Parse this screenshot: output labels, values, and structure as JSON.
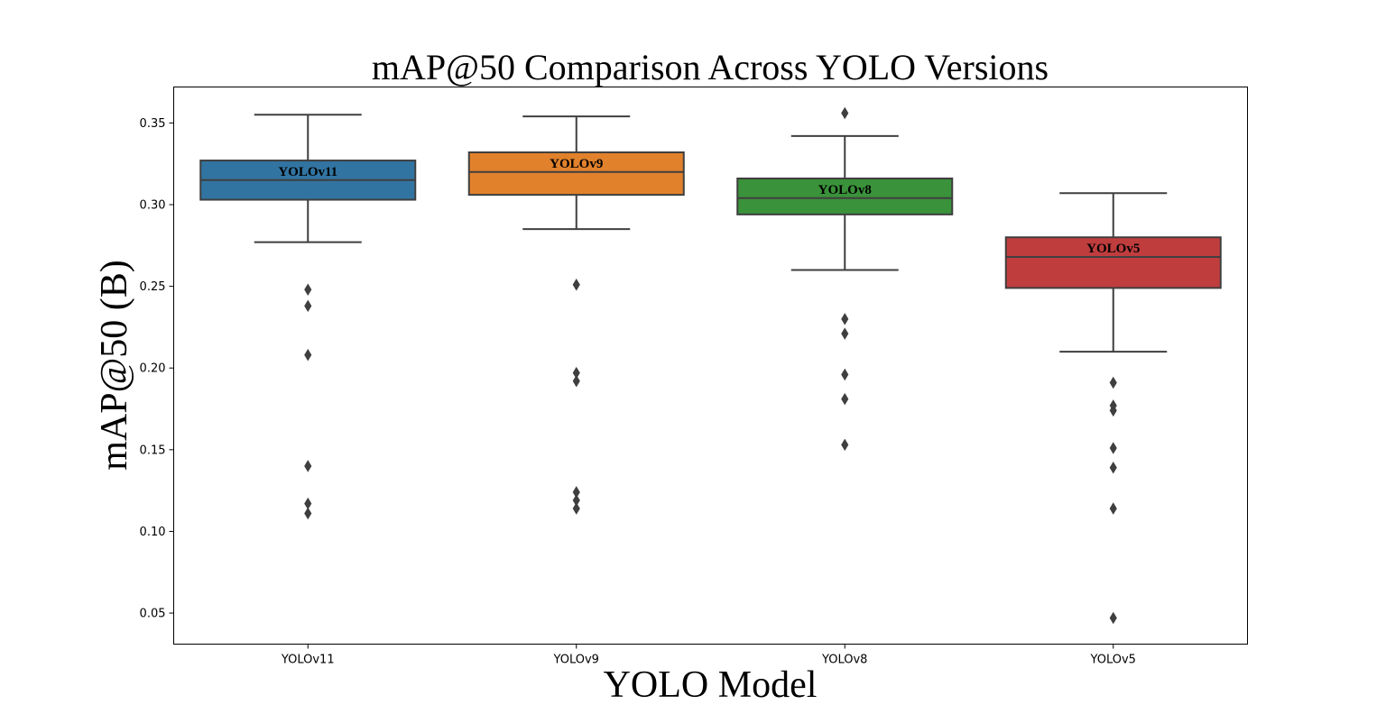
{
  "chart_data": {
    "type": "box",
    "title": "mAP@50 Comparison Across YOLO Versions",
    "xlabel": "YOLO Model",
    "ylabel": "mAP@50 (B)",
    "ylim": [
      0.031,
      0.372
    ],
    "yticks": [
      "0.05",
      "0.10",
      "0.15",
      "0.20",
      "0.25",
      "0.30",
      "0.35"
    ],
    "categories": [
      "YOLOv11",
      "YOLOv9",
      "YOLOv8",
      "YOLOv5"
    ],
    "grid": false,
    "series": [
      {
        "name": "YOLOv11",
        "color": "#3274a1",
        "whisker_low": 0.277,
        "q1": 0.303,
        "median": 0.315,
        "q3": 0.327,
        "whisker_high": 0.355,
        "outliers": [
          0.248,
          0.238,
          0.208,
          0.14,
          0.117,
          0.111
        ]
      },
      {
        "name": "YOLOv9",
        "color": "#e1812c",
        "whisker_low": 0.285,
        "q1": 0.306,
        "median": 0.32,
        "q3": 0.332,
        "whisker_high": 0.354,
        "outliers": [
          0.251,
          0.197,
          0.192,
          0.124,
          0.119,
          0.114
        ]
      },
      {
        "name": "YOLOv8",
        "color": "#3a923a",
        "whisker_low": 0.26,
        "q1": 0.294,
        "median": 0.304,
        "q3": 0.316,
        "whisker_high": 0.342,
        "outliers": [
          0.356,
          0.23,
          0.221,
          0.196,
          0.181,
          0.153
        ]
      },
      {
        "name": "YOLOv5",
        "color": "#c03d3e",
        "whisker_low": 0.21,
        "q1": 0.249,
        "median": 0.268,
        "q3": 0.28,
        "whisker_high": 0.307,
        "outliers": [
          0.191,
          0.177,
          0.174,
          0.151,
          0.139,
          0.114,
          0.047
        ]
      }
    ]
  }
}
